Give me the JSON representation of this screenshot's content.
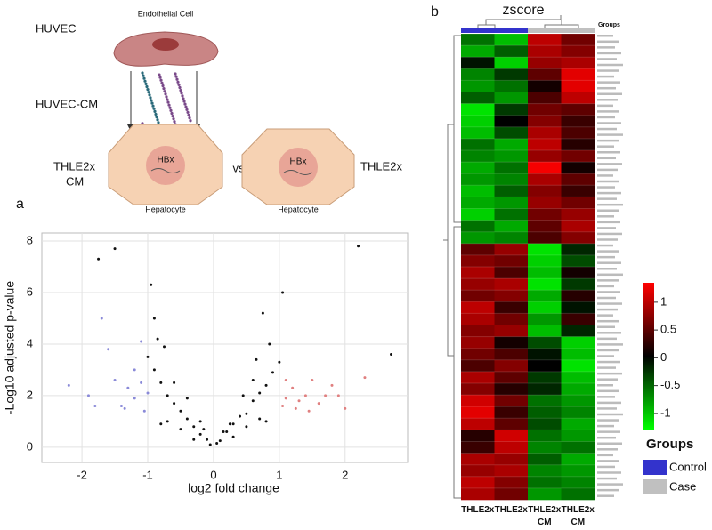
{
  "panels": {
    "a": "a",
    "b": "b"
  },
  "schematic": {
    "huvec": "HUVEC",
    "endothelial": "Endothelial Cell",
    "huvec_cm": "HUVEC-CM",
    "thle2x_cm": [
      "THLE2x",
      "CM"
    ],
    "hbx_left": "HBx",
    "vs": "vs",
    "hbx_right": "HBx",
    "thle2x": "THLE2x",
    "hepatocyte_left": "Hepatocyte",
    "hepatocyte_right": "Hepatocyte"
  },
  "chart_data": [
    {
      "type": "scatter",
      "xlabel": "log2 fold change",
      "ylabel": "-Log10 adjusted p-value",
      "xlim": [
        -2.61,
        2.95
      ],
      "ylim": [
        -0.59,
        8.31
      ],
      "xticks": [
        -2,
        -1,
        0,
        1,
        2
      ],
      "yticks": [
        0,
        2,
        4,
        6,
        8
      ],
      "grid": true,
      "series": [
        {
          "color": "#111111",
          "x": [
            -0.05,
            0.05,
            -0.1,
            0.1,
            -0.2,
            0.2,
            -0.3,
            0.3,
            -0.4,
            0.4,
            -0.5,
            0.5,
            -0.6,
            0.6,
            -0.7,
            0.7,
            -0.8,
            0.8,
            -0.9,
            0.9,
            -1.0,
            1.0,
            -0.85,
            0.85,
            -0.9,
            0.75,
            -0.95,
            1.05,
            -0.3,
            0.3,
            -0.5,
            0.5,
            -0.7,
            0.7,
            -0.6,
            0.6,
            -0.4,
            0.45,
            -0.2,
            0.25,
            -0.15,
            0.15,
            -0.8,
            0.8,
            2.2,
            -1.5,
            -1.75,
            2.7,
            -0.75,
            0.65
          ],
          "y": [
            0.1,
            0.15,
            0.3,
            0.25,
            0.5,
            0.6,
            0.8,
            0.9,
            1.1,
            1.2,
            1.4,
            1.3,
            1.7,
            1.8,
            2.0,
            2.1,
            2.5,
            2.4,
            3.0,
            2.9,
            3.5,
            3.3,
            4.2,
            4.0,
            5.0,
            5.2,
            6.3,
            6.0,
            0.3,
            0.4,
            0.7,
            0.8,
            1.0,
            1.1,
            2.5,
            2.6,
            1.9,
            2.0,
            1.0,
            0.9,
            0.7,
            0.6,
            0.9,
            1.0,
            7.8,
            7.7,
            7.3,
            3.6,
            3.9,
            3.4
          ]
        },
        {
          "color": "#8a8ad8",
          "x": [
            -1.1,
            -1.2,
            -1.3,
            -1.4,
            -1.0,
            -1.5,
            -1.6,
            -2.2,
            -1.9,
            -1.2,
            -1.05,
            -1.35,
            -1.8,
            -1.1,
            -1.7
          ],
          "y": [
            2.5,
            1.9,
            2.3,
            1.6,
            2.1,
            2.6,
            3.8,
            2.4,
            2.0,
            3.0,
            1.4,
            1.5,
            1.6,
            4.1,
            5.0
          ]
        },
        {
          "color": "#e08080",
          "x": [
            1.1,
            1.2,
            1.3,
            1.4,
            1.5,
            1.6,
            1.7,
            1.8,
            1.1,
            1.25,
            1.45,
            1.9,
            2.0,
            2.3,
            1.05
          ],
          "y": [
            1.9,
            2.3,
            1.8,
            2.0,
            2.6,
            1.7,
            2.0,
            2.4,
            2.6,
            1.5,
            1.4,
            2.0,
            1.5,
            2.7,
            1.6
          ]
        }
      ]
    },
    {
      "type": "heatmap",
      "title": "zscore",
      "groups_header": "Groups",
      "categories": [
        "THLE2x",
        "THLE2x",
        "THLE2x CM",
        "THLE2x CM"
      ],
      "column_groups": [
        0,
        0,
        1,
        1
      ],
      "colors": [
        "#00ff00",
        "#000000",
        "#ff0000"
      ],
      "zlim": [
        -1.29,
        1.35
      ],
      "zticks": [
        1,
        0.5,
        0,
        -0.5,
        -1
      ],
      "legend": {
        "title": "Groups",
        "items": [
          {
            "name": "Control",
            "color": "#3333cc"
          },
          {
            "name": "Case",
            "color": "#c0c0c0"
          }
        ]
      },
      "values": [
        [
          -0.6,
          -1.0,
          1.0,
          0.6
        ],
        [
          -0.9,
          -0.5,
          0.9,
          0.7
        ],
        [
          -0.1,
          -1.1,
          0.8,
          0.9
        ],
        [
          -0.7,
          -0.3,
          0.5,
          1.2
        ],
        [
          -0.8,
          -0.6,
          0.1,
          1.2
        ],
        [
          -0.5,
          -0.8,
          0.4,
          1.0
        ],
        [
          -1.2,
          -0.3,
          0.6,
          0.5
        ],
        [
          -1.1,
          0.0,
          0.7,
          0.3
        ],
        [
          -1.0,
          -0.4,
          0.9,
          0.4
        ],
        [
          -0.6,
          -0.9,
          1.0,
          0.2
        ],
        [
          -0.7,
          -0.8,
          0.8,
          0.6
        ],
        [
          -0.9,
          -0.6,
          1.3,
          0.1
        ],
        [
          -0.8,
          -0.7,
          0.9,
          0.5
        ],
        [
          -1.0,
          -0.5,
          0.7,
          0.3
        ],
        [
          -0.9,
          -0.8,
          0.8,
          0.6
        ],
        [
          -1.1,
          -0.6,
          0.6,
          0.8
        ],
        [
          -0.6,
          -0.9,
          0.5,
          0.9
        ],
        [
          -0.8,
          -0.7,
          0.4,
          0.7
        ],
        [
          0.5,
          0.8,
          -1.2,
          -0.2
        ],
        [
          0.7,
          0.6,
          -1.1,
          -0.4
        ],
        [
          0.9,
          0.4,
          -1.0,
          0.1
        ],
        [
          0.8,
          0.9,
          -1.2,
          -0.3
        ],
        [
          0.6,
          0.7,
          -0.9,
          0.2
        ],
        [
          1.0,
          0.3,
          -1.1,
          -0.1
        ],
        [
          0.9,
          0.6,
          -0.8,
          0.3
        ],
        [
          0.7,
          0.8,
          -1.0,
          -0.2
        ],
        [
          0.8,
          0.1,
          -0.4,
          -1.1
        ],
        [
          0.6,
          0.4,
          -0.1,
          -1.0
        ],
        [
          0.4,
          0.7,
          0.0,
          -1.2
        ],
        [
          0.9,
          0.5,
          -0.3,
          -1.0
        ],
        [
          0.7,
          0.2,
          -0.2,
          -0.9
        ],
        [
          1.1,
          0.6,
          -0.6,
          -0.8
        ],
        [
          1.2,
          0.3,
          -0.5,
          -0.7
        ],
        [
          1.0,
          0.5,
          -0.4,
          -0.9
        ],
        [
          0.2,
          1.1,
          -0.6,
          -0.8
        ],
        [
          0.3,
          1.0,
          -0.7,
          -0.6
        ],
        [
          0.9,
          0.8,
          -0.5,
          -0.9
        ],
        [
          0.8,
          0.9,
          -0.7,
          -0.8
        ],
        [
          1.0,
          0.7,
          -0.6,
          -0.7
        ],
        [
          0.9,
          0.6,
          -0.8,
          -0.6
        ]
      ]
    }
  ]
}
